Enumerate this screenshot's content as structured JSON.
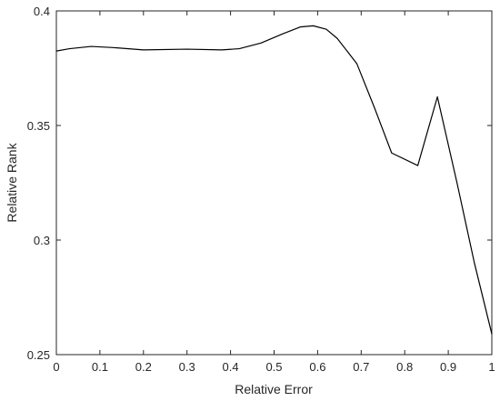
{
  "chart_data": {
    "type": "line",
    "title": "",
    "xlabel": "Relative Error",
    "ylabel": "Relative Rank",
    "xlim": [
      0,
      1
    ],
    "ylim": [
      0.25,
      0.4
    ],
    "xticks": [
      0,
      0.1,
      0.2,
      0.3,
      0.4,
      0.5,
      0.6,
      0.7,
      0.8,
      0.9,
      1
    ],
    "xtick_labels": [
      "0",
      "0.1",
      "0.2",
      "0.3",
      "0.4",
      "0.5",
      "0.6",
      "0.7",
      "0.8",
      "0.9",
      "1"
    ],
    "yticks": [
      0.25,
      0.3,
      0.35,
      0.4
    ],
    "ytick_labels": [
      "0.25",
      "0.3",
      "0.35",
      "0.4"
    ],
    "grid": false,
    "legend": "none",
    "line_color": "#000000",
    "series": [
      {
        "x": [
          0,
          0.03,
          0.08,
          0.13,
          0.2,
          0.3,
          0.38,
          0.42,
          0.47,
          0.52,
          0.56,
          0.59,
          0.62,
          0.645,
          0.69,
          0.73,
          0.77,
          0.83,
          0.875,
          0.92,
          0.96,
          1.0
        ],
        "y": [
          0.3825,
          0.3835,
          0.3845,
          0.384,
          0.383,
          0.3833,
          0.383,
          0.3835,
          0.386,
          0.39,
          0.393,
          0.3935,
          0.392,
          0.388,
          0.377,
          0.358,
          0.338,
          0.3325,
          0.3625,
          0.325,
          0.29,
          0.259
        ]
      }
    ]
  }
}
